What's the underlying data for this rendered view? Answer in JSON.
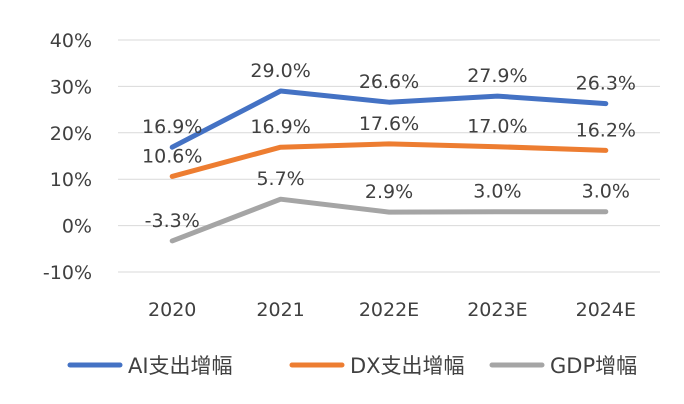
{
  "chart_data": {
    "type": "line",
    "categories": [
      "2020",
      "2021",
      "2022E",
      "2023E",
      "2024E"
    ],
    "ylim": [
      -10,
      40
    ],
    "yticks": [
      -10,
      0,
      10,
      20,
      30,
      40
    ],
    "ytick_labels": [
      "-10%",
      "0%",
      "10%",
      "20%",
      "30%",
      "40%"
    ],
    "grid": true,
    "legend_position": "bottom",
    "series": [
      {
        "name": "AI支出增幅",
        "color": "#4472C4",
        "values": [
          16.9,
          29.0,
          26.6,
          27.9,
          26.3
        ],
        "labels": [
          "16.9%",
          "29.0%",
          "26.6%",
          "27.9%",
          "26.3%"
        ]
      },
      {
        "name": "DX支出增幅",
        "color": "#ED7D31",
        "values": [
          10.6,
          16.9,
          17.6,
          17.0,
          16.2
        ],
        "labels": [
          "10.6%",
          "16.9%",
          "17.6%",
          "17.0%",
          "16.2%"
        ]
      },
      {
        "name": "GDP增幅",
        "color": "#A5A5A5",
        "values": [
          -3.3,
          5.7,
          2.9,
          3.0,
          3.0
        ],
        "labels": [
          "-3.3%",
          "5.7%",
          "2.9%",
          "3.0%",
          "3.0%"
        ]
      }
    ]
  }
}
